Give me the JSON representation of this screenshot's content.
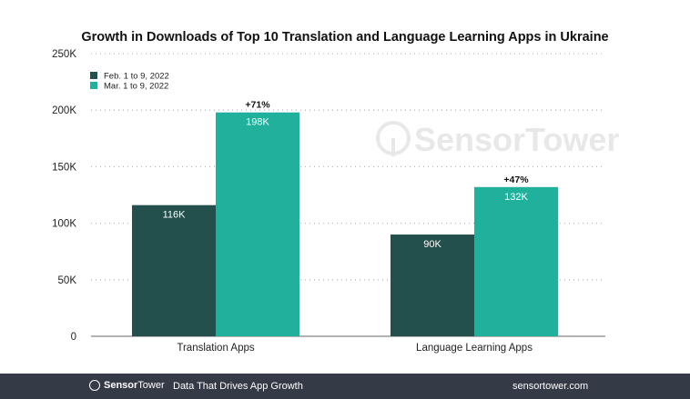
{
  "chart_data": {
    "type": "bar",
    "title": "Growth in Downloads of Top 10 Translation and Language Learning Apps in Ukraine",
    "categories": [
      "Translation Apps",
      "Language Learning Apps"
    ],
    "series": [
      {
        "name": "Feb. 1 to 9, 2022",
        "color": "#234f4c",
        "values": [
          116,
          90
        ],
        "labels": [
          "116K",
          "90K"
        ]
      },
      {
        "name": "Mar. 1 to 9, 2022",
        "color": "#20b09c",
        "values": [
          198,
          132
        ],
        "labels": [
          "198K",
          "132K"
        ]
      }
    ],
    "growth_labels": [
      "+71%",
      "+47%"
    ],
    "ylim": [
      0,
      250
    ],
    "yticks": [
      0,
      50,
      100,
      150,
      200,
      250
    ],
    "ytick_labels": [
      "0",
      "50K",
      "100K",
      "150K",
      "200K",
      "250K"
    ],
    "xlabel": "",
    "ylabel": "",
    "grid": true,
    "legend_position": "top-left"
  },
  "watermark": "SensorTower",
  "footer": {
    "brand_bold": "Sensor",
    "brand_light": "Tower",
    "tagline": "Data That Drives App Growth",
    "site": "sensortower.com"
  }
}
